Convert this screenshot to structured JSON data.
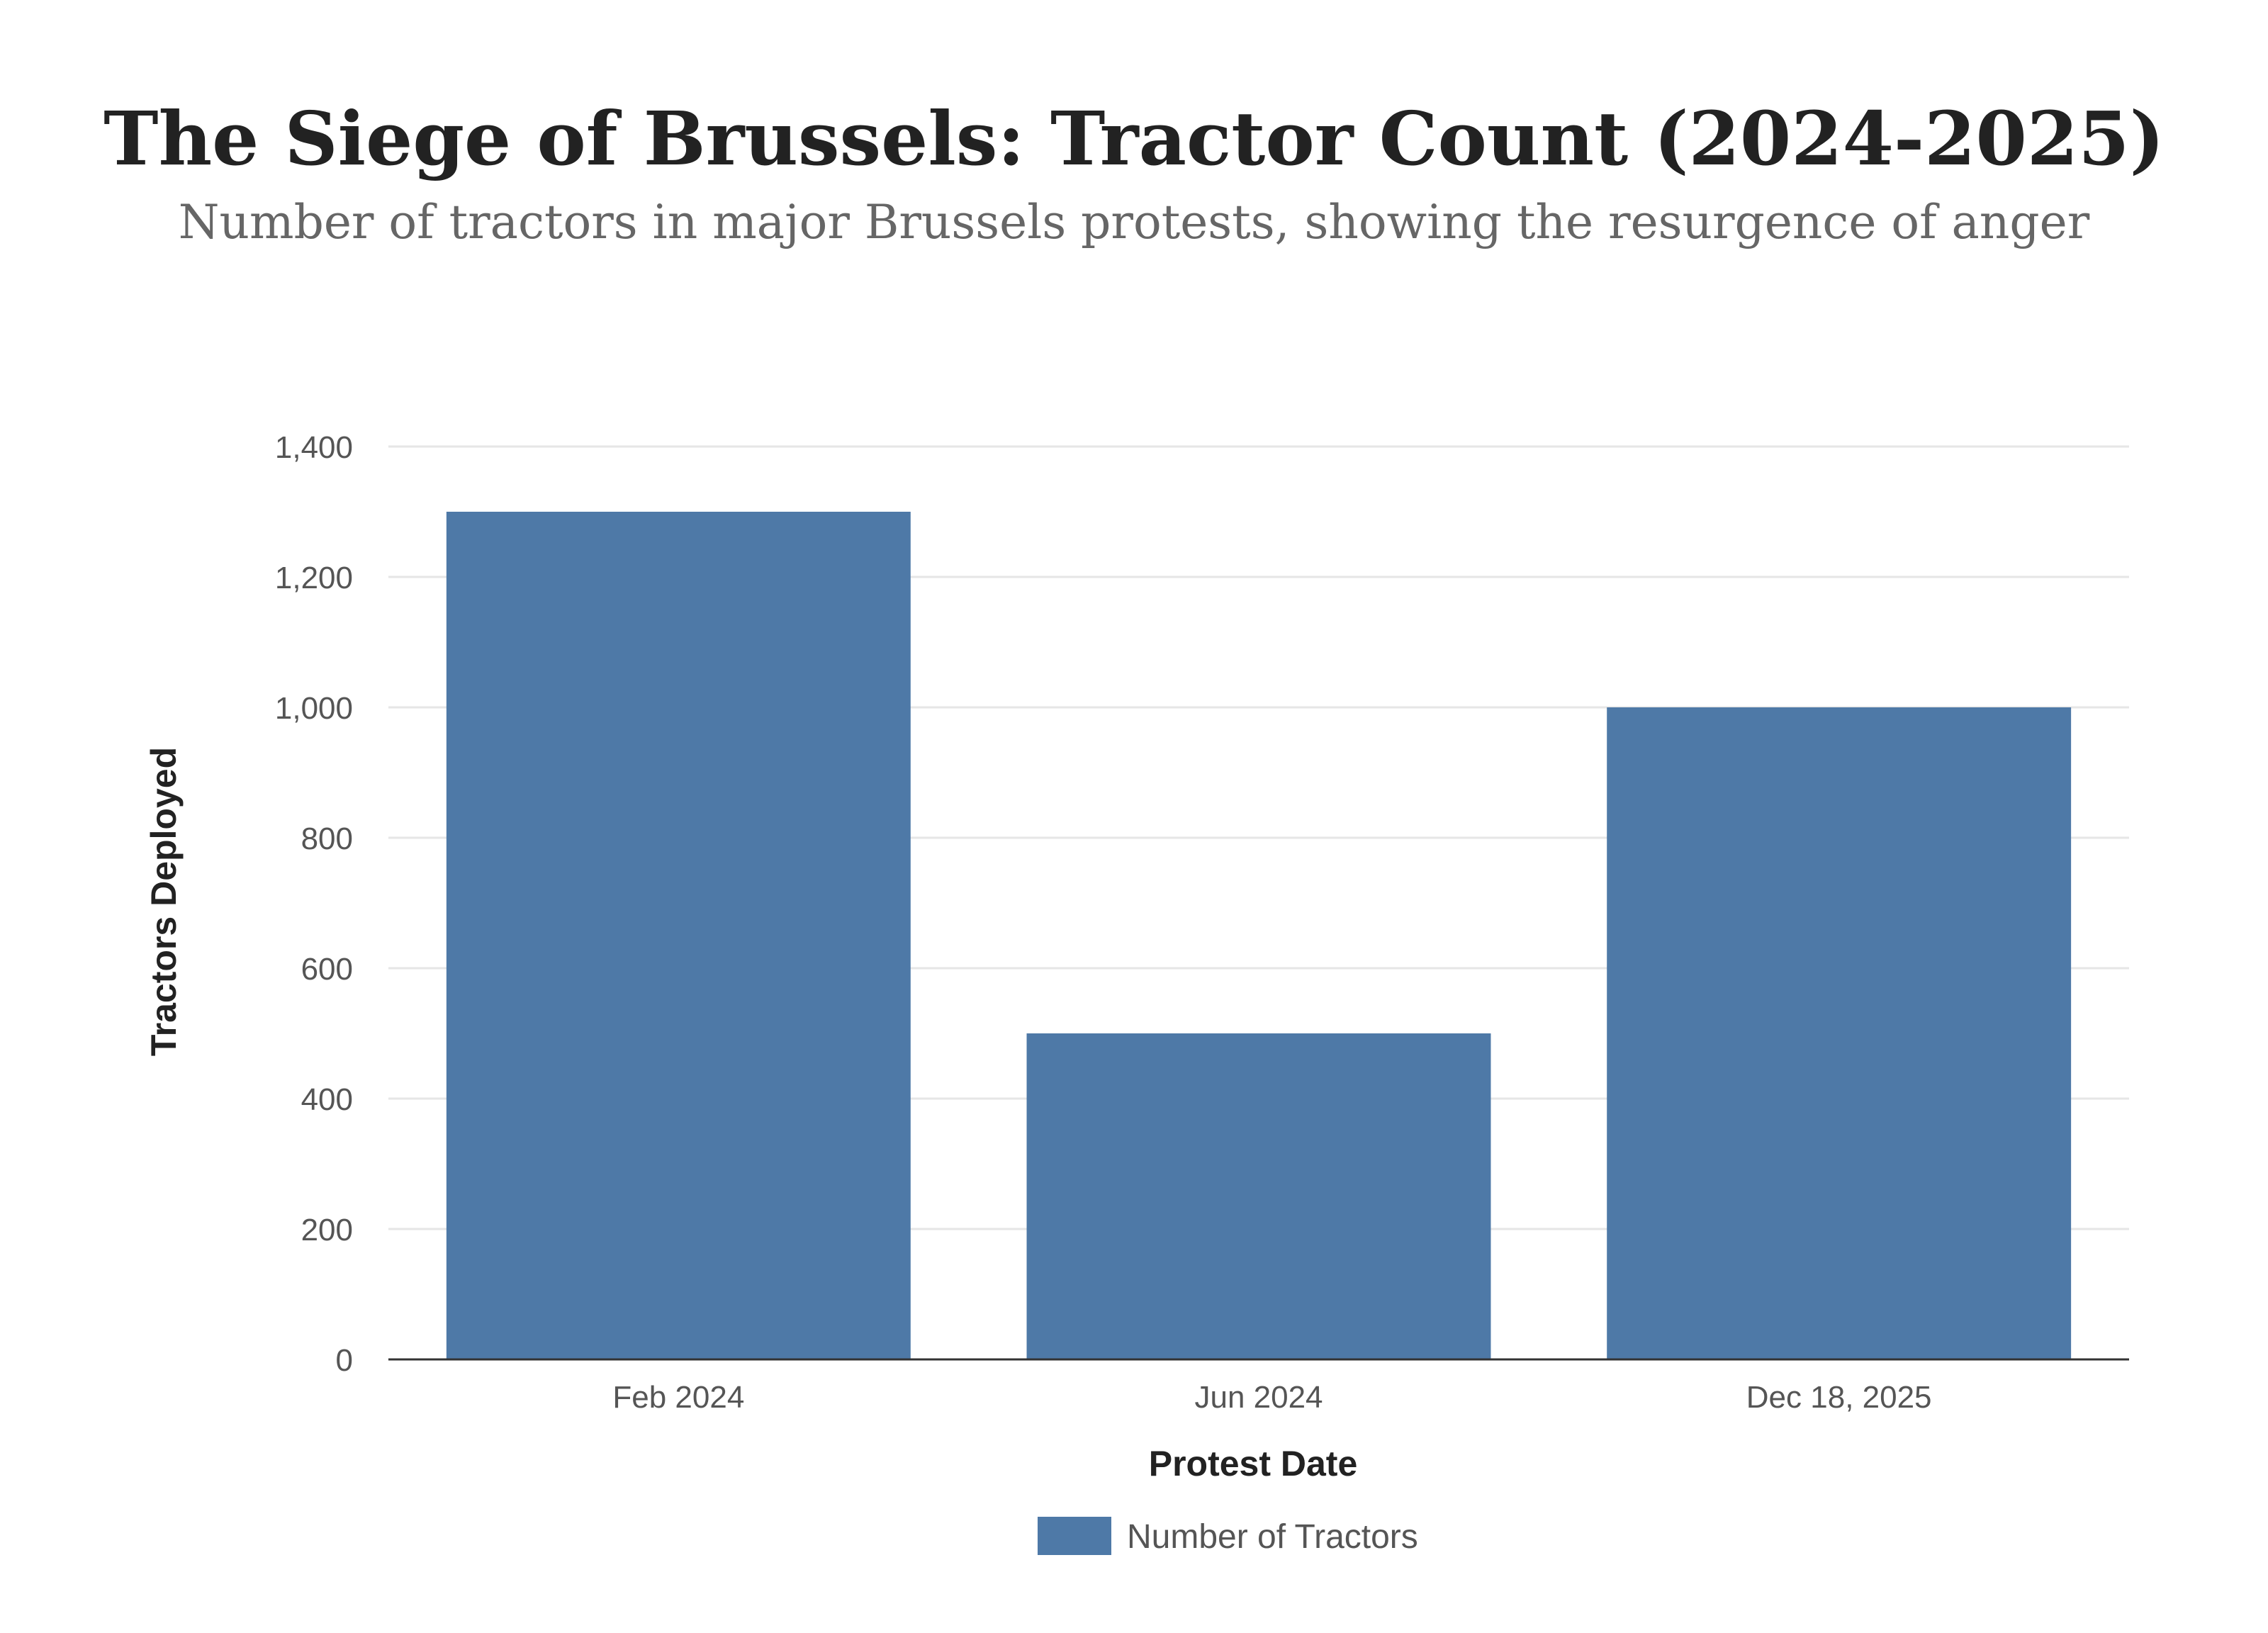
{
  "chart_data": {
    "type": "bar",
    "title": "The Siege of Brussels: Tractor Count (2024-2025)",
    "subtitle": "Number of tractors in major Brussels protests, showing the resurgence of anger",
    "xlabel": "Protest Date",
    "ylabel": "Tractors Deployed",
    "categories": [
      "Feb 2024",
      "Jun 2024",
      "Dec 18, 2025"
    ],
    "series": [
      {
        "name": "Number of Tractors",
        "values": [
          1300,
          500,
          1000
        ],
        "color": "#4e79a7"
      }
    ],
    "ylim": [
      0,
      1400
    ],
    "yticks": [
      0,
      200,
      400,
      600,
      800,
      1000,
      1200,
      1400
    ],
    "ytick_labels": [
      "0",
      "200",
      "400",
      "600",
      "800",
      "1,000",
      "1,200",
      "1,400"
    ],
    "grid": true,
    "legend_position": "bottom-center"
  }
}
